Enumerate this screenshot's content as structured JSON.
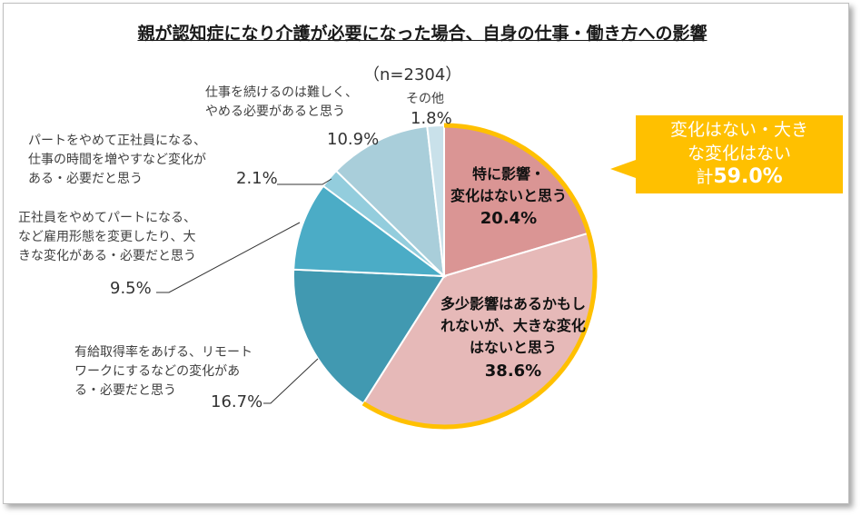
{
  "title": "親が認知症になり介護が必要になった場合、自身の仕事・働き方への影響",
  "sample": "（n=2304）",
  "callout": {
    "line1": "変化はない・大き",
    "line2": "な変化はない",
    "prefix": "計",
    "total": "59.0%",
    "color": "#FFC000"
  },
  "chart_data": {
    "type": "pie",
    "slices": [
      {
        "label": "特に影響・変化はないと思う",
        "value": 20.4,
        "color": "#DA9594"
      },
      {
        "label": "多少影響はあるかもしれないが、大きな変化はないと思う",
        "value": 38.6,
        "color": "#E6B9B8"
      },
      {
        "label": "有給取得率をあげる、リモートワークにするなどの変化がある・必要だと思う",
        "value": 16.7,
        "color": "#4199B1"
      },
      {
        "label": "正社員をやめてパートになる、など雇用形態を変更したり、大きな変化がある・必要だと思う",
        "value": 9.5,
        "color": "#4BACC6"
      },
      {
        "label": "パートをやめて正社員になる、仕事の時間を増やすなど変化がある・必要だと思う",
        "value": 2.1,
        "color": "#93CDDD"
      },
      {
        "label": "仕事を続けるのは難しく、やめる必要があると思う",
        "value": 10.9,
        "color": "#A9CEDA"
      },
      {
        "label": "その他",
        "value": 1.8,
        "color": "#C9E1EA"
      }
    ]
  },
  "labels": {
    "s0_l1": "特に影響・",
    "s0_l2": "変化はないと思う",
    "s0_pct": "20.4%",
    "s1_l1": "多少影響はあるかもし",
    "s1_l2": "れないが、大きな変化",
    "s1_l3": "はないと思う",
    "s1_pct": "38.6%",
    "s2_l1": "有給取得率をあげる、リモート",
    "s2_l2": "ワークにするなどの変化があ",
    "s2_l3": "る・必要だと思う",
    "s2_pct": "16.7%",
    "s3_l1": "正社員をやめてパートになる、",
    "s3_l2": "など雇用形態を変更したり、大",
    "s3_l3": "きな変化がある・必要だと思う",
    "s3_pct": "9.5%",
    "s4_l1": "パートをやめて正社員になる、",
    "s4_l2": "仕事の時間を増やすなど変化が",
    "s4_l3": "ある・必要だと思う",
    "s4_pct": "2.1%",
    "s5_l1": "仕事を続けるのは難しく、",
    "s5_l2": "やめる必要があると思う",
    "s5_pct": "10.9%",
    "s6_l1": "その他",
    "s6_pct": "1.8%"
  }
}
